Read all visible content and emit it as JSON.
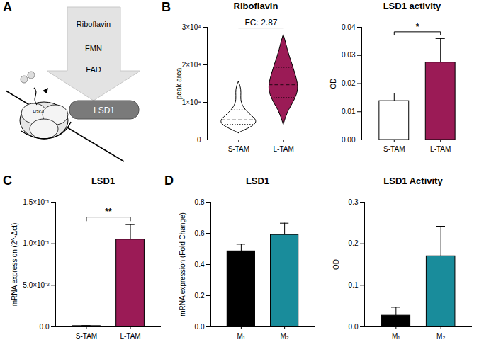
{
  "diagram": {
    "panel": "A",
    "labels": [
      "Riboflavin",
      "FMN",
      "FAD"
    ],
    "enzyme": "LSD1",
    "histone": "H3K4"
  },
  "chart_data": [
    {
      "panel": "B",
      "type": "violin",
      "title": "Riboflavin",
      "categories": [
        "S-TAM",
        "L-TAM"
      ],
      "colors": [
        "#ffffff",
        "#9b1b56"
      ],
      "ylabel": "peak area",
      "ylim": [
        0,
        30000
      ],
      "yticks": [
        0,
        {
          "value": 10000,
          "label": "1×10⁴"
        },
        {
          "value": 20000,
          "label": "2×10⁴"
        },
        {
          "value": 30000,
          "label": "3×10⁴"
        }
      ],
      "violins": [
        {
          "y": [
            1800,
            2500,
            3500,
            4500,
            5500,
            6500,
            8000,
            9500,
            11000,
            12500,
            14000,
            15500
          ],
          "half_width": [
            0,
            0.12,
            0.3,
            0.4,
            0.38,
            0.28,
            0.15,
            0.07,
            0.05,
            0.06,
            0.05,
            0
          ],
          "median": 5300,
          "quartiles": [
            4100,
            8000
          ]
        },
        {
          "y": [
            4000,
            6000,
            8000,
            10000,
            12000,
            14000,
            16000,
            18000,
            20000,
            22000,
            24000,
            26000,
            28000
          ],
          "half_width": [
            0,
            0.05,
            0.12,
            0.22,
            0.3,
            0.33,
            0.3,
            0.25,
            0.2,
            0.14,
            0.09,
            0.05,
            0
          ],
          "median": 14700,
          "quartiles": [
            11300,
            19300
          ]
        }
      ],
      "annotation": "FC: 2.87"
    },
    {
      "panel": "B",
      "type": "bar",
      "title": "LSD1 activity",
      "categories": [
        "S-TAM",
        "L-TAM"
      ],
      "values": [
        0.0138,
        0.0275
      ],
      "errors": [
        0.0028,
        0.0085
      ],
      "colors": [
        "#ffffff",
        "#9b1b56"
      ],
      "ylabel": "OD",
      "ylim": [
        0,
        0.04
      ],
      "yticks": [
        {
          "value": 0,
          "label": "0.00"
        },
        0.01,
        0.02,
        0.03,
        {
          "value": 0.04,
          "label": "0.04"
        }
      ],
      "annotation": "*"
    },
    {
      "panel": "C",
      "type": "bar",
      "title": "LSD1",
      "categories": [
        "S-TAM",
        "L-TAM"
      ],
      "values": [
        0.001,
        0.105
      ],
      "errors": [
        0.0005,
        0.018
      ],
      "colors": [
        "#ffffff",
        "#9b1b56"
      ],
      "ylabel": "mRNA expression (2^-Δct)",
      "ylim": [
        0,
        0.15
      ],
      "yticks": [
        {
          "value": 0,
          "label": "0.0"
        },
        {
          "value": 0.05,
          "label": "5.0×10⁻²"
        },
        {
          "value": 0.1,
          "label": "1.0×10⁻¹"
        },
        {
          "value": 0.15,
          "label": "1.5×10⁻¹"
        }
      ],
      "annotation": "**"
    },
    {
      "panel": "D",
      "type": "bar",
      "title": "LSD1",
      "categories": [
        "M₁",
        "M₂"
      ],
      "values": [
        0.485,
        0.59
      ],
      "errors": [
        0.045,
        0.075
      ],
      "colors": [
        "#000000",
        "#198c9b"
      ],
      "ylabel": "mRNA expression (Fold Change)",
      "ylim": [
        0,
        0.8
      ],
      "yticks": [
        {
          "value": 0,
          "label": "0.0"
        },
        0.2,
        0.4,
        0.6,
        0.8
      ]
    },
    {
      "panel": "D",
      "type": "bar",
      "title": "LSD1 Activity",
      "categories": [
        "M₁",
        "M₂"
      ],
      "values": [
        0.027,
        0.17
      ],
      "errors": [
        0.02,
        0.072
      ],
      "colors": [
        "#000000",
        "#198c9b"
      ],
      "ylabel": "OD",
      "ylim": [
        0,
        0.3
      ],
      "yticks": [
        {
          "value": 0,
          "label": "0.0"
        },
        0.1,
        0.2,
        0.3
      ]
    }
  ]
}
